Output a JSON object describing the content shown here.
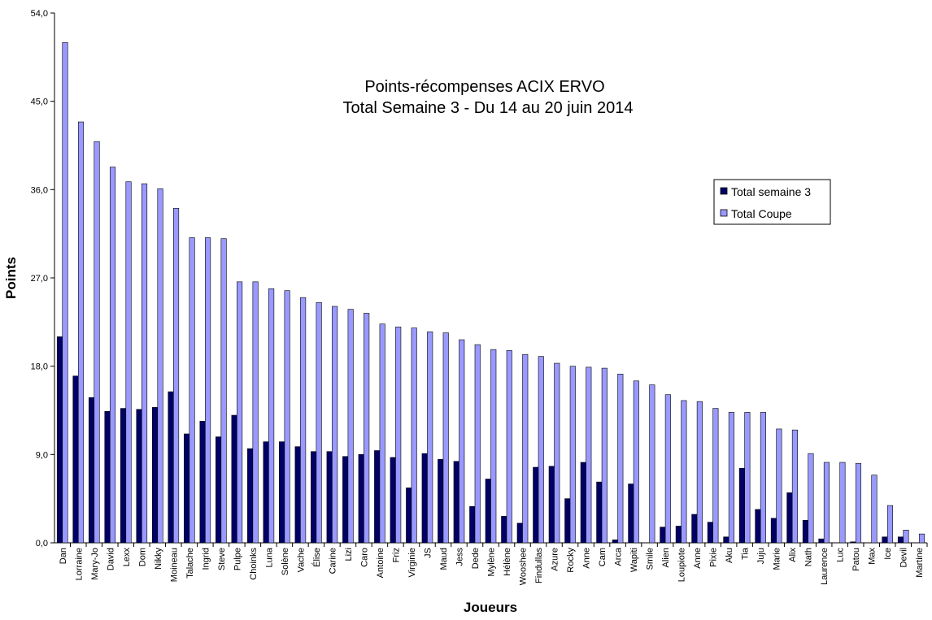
{
  "chart_data": {
    "type": "bar",
    "title": "Points-récompenses ACIX ERVO",
    "subtitle": "Total Semaine 3 - Du 14 au 20 juin 2014",
    "xlabel": "Joueurs",
    "ylabel": "Points",
    "ylim": [
      0,
      54
    ],
    "yticks": [
      "0,0",
      "9,0",
      "18,0",
      "27,0",
      "36,0",
      "45,0",
      "54,0"
    ],
    "grid": false,
    "legend_position": "right",
    "categories": [
      "Dan",
      "Lorraine",
      "Mary-Jo",
      "David",
      "Lexx",
      "Dom",
      "Nikky",
      "Moineau",
      "Talache",
      "Ingrid",
      "Steve",
      "Pulpe",
      "Choinks",
      "Luna",
      "Solène",
      "Vache",
      "Élise",
      "Carine",
      "Lizi",
      "Caro",
      "Antoine",
      "Friz",
      "Virginie",
      "JS",
      "Maud",
      "Jess",
      "Dede",
      "Mylène",
      "Hélène",
      "Wooshee",
      "Findullas",
      "Azure",
      "Rocky",
      "Anne",
      "Cam",
      "Arca",
      "Wapiti",
      "Smile",
      "Alien",
      "Loupiote",
      "Anne",
      "Pixie",
      "Aku",
      "Tia",
      "Juju",
      "Marie",
      "Alix",
      "Nath",
      "Laurence",
      "Luc",
      "Patou",
      "Max",
      "Ice",
      "Devil",
      "Martine"
    ],
    "series": [
      {
        "name": "Total semaine 3",
        "color": "#000066",
        "values": [
          21.0,
          17.0,
          14.8,
          13.4,
          13.7,
          13.6,
          13.8,
          15.4,
          11.1,
          12.4,
          10.8,
          13.0,
          9.6,
          10.3,
          10.3,
          9.8,
          9.3,
          9.3,
          8.8,
          9.0,
          9.4,
          8.7,
          5.6,
          9.1,
          8.5,
          8.3,
          3.7,
          6.5,
          2.7,
          2.0,
          7.7,
          7.8,
          4.5,
          8.2,
          6.2,
          0.3,
          6.0,
          0.0,
          1.6,
          1.7,
          2.9,
          2.1,
          0.6,
          7.6,
          3.4,
          2.5,
          5.1,
          2.3,
          0.4,
          0.0,
          0.1,
          0.0,
          0.6,
          0.6,
          0.0
        ]
      },
      {
        "name": "Total Coupe",
        "color": "#9999ff",
        "values": [
          51.0,
          42.9,
          40.9,
          38.3,
          36.8,
          36.6,
          36.1,
          34.1,
          31.1,
          31.1,
          31.0,
          26.6,
          26.6,
          25.9,
          25.7,
          25.0,
          24.5,
          24.1,
          23.8,
          23.4,
          22.3,
          22.0,
          21.9,
          21.5,
          21.4,
          20.7,
          20.2,
          19.7,
          19.6,
          19.2,
          19.0,
          18.3,
          18.0,
          17.9,
          17.8,
          17.2,
          16.5,
          16.1,
          15.1,
          14.5,
          14.4,
          13.7,
          13.3,
          13.3,
          13.3,
          11.6,
          11.5,
          9.1,
          8.2,
          8.2,
          8.1,
          6.9,
          3.8,
          1.3,
          0.9
        ]
      }
    ]
  }
}
